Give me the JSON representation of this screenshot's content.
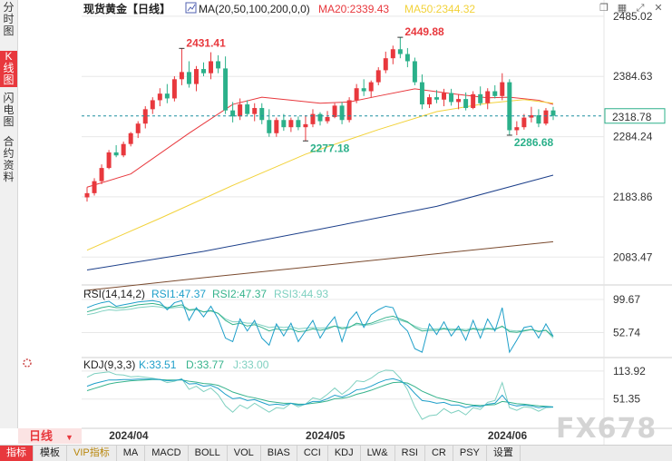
{
  "left_tabs": [
    {
      "label": "分时图",
      "active": false
    },
    {
      "label": "K线图",
      "active": true
    },
    {
      "label": "闪电图",
      "active": false
    },
    {
      "label": "合约资料",
      "active": false
    }
  ],
  "period_selector": {
    "label": "日线",
    "arrow": "▼"
  },
  "bottom_tabs": [
    "指标",
    "模板",
    "VIP指标",
    "MA",
    "MACD",
    "BOLL",
    "VOL",
    "BIAS",
    "CCI",
    "KDJ",
    "LW&",
    "RSI",
    "CR",
    "PSY",
    "设置"
  ],
  "watermark": "FX678",
  "top_icons": [
    "window-restore-icon",
    "grid-icon",
    "expand-icon",
    "close-icon"
  ],
  "colors": {
    "up": "#e8383d",
    "down": "#2bb08a",
    "ma20": "#e8383d",
    "ma50": "#f2d23a",
    "ma100": "#1c3f8a",
    "ma200": "#7a4a2e",
    "rsi1": "#1e9fc9",
    "rsi2": "#36b38c",
    "rsi3": "#7fd0c0",
    "k": "#1e9fc9",
    "d": "#36b38c",
    "j": "#7fd0c0",
    "grid": "#e8e8e8",
    "price_line": "#1e8fa0"
  },
  "chart_data": {
    "type": "candlestick",
    "title": "现货黄金【日线】",
    "ma_header": "MA(20,50,100,200,0,0)",
    "ma_labels": [
      {
        "name": "MA20",
        "label": "MA20:2339.43",
        "value": 2339.43,
        "color_key": "ma20"
      },
      {
        "name": "MA50",
        "label": "MA50:2344.32",
        "value": 2344.32,
        "color_key": "ma50"
      }
    ],
    "y_ticks": [
      2485.02,
      2384.63,
      2284.24,
      2183.86,
      2083.47
    ],
    "y_tick_labels": [
      "2485.02",
      "2384.63",
      "2284.24",
      "2183.86",
      "2083.47"
    ],
    "ylim": [
      2040,
      2500
    ],
    "x_labels": [
      "2024/04",
      "2024/05",
      "2024/06"
    ],
    "x_label_index": [
      6,
      33,
      58
    ],
    "current_price": 2318.78,
    "current_price_label": "2318.78",
    "annotations": [
      {
        "label": "2431.41",
        "value": 2431.41,
        "index": 13,
        "kind": "high"
      },
      {
        "label": "2449.88",
        "value": 2449.88,
        "index": 43,
        "kind": "high"
      },
      {
        "label": "2277.18",
        "value": 2277.18,
        "index": 30,
        "kind": "low"
      },
      {
        "label": "2286.68",
        "value": 2286.68,
        "index": 58,
        "kind": "low"
      }
    ],
    "ohlc": [
      [
        2183,
        2200,
        2176,
        2190
      ],
      [
        2190,
        2215,
        2186,
        2210
      ],
      [
        2210,
        2238,
        2205,
        2232
      ],
      [
        2232,
        2262,
        2230,
        2258
      ],
      [
        2258,
        2270,
        2250,
        2253
      ],
      [
        2253,
        2276,
        2250,
        2272
      ],
      [
        2272,
        2292,
        2268,
        2290
      ],
      [
        2290,
        2310,
        2282,
        2306
      ],
      [
        2306,
        2335,
        2298,
        2330
      ],
      [
        2330,
        2350,
        2322,
        2345
      ],
      [
        2345,
        2365,
        2335,
        2356
      ],
      [
        2356,
        2372,
        2340,
        2348
      ],
      [
        2348,
        2385,
        2343,
        2380
      ],
      [
        2380,
        2431.41,
        2370,
        2392
      ],
      [
        2392,
        2410,
        2366,
        2372
      ],
      [
        2372,
        2402,
        2360,
        2397
      ],
      [
        2397,
        2408,
        2385,
        2390
      ],
      [
        2390,
        2425,
        2380,
        2410
      ],
      [
        2410,
        2420,
        2390,
        2398
      ],
      [
        2398,
        2418,
        2322,
        2328
      ],
      [
        2328,
        2342,
        2308,
        2318
      ],
      [
        2318,
        2348,
        2312,
        2338
      ],
      [
        2338,
        2345,
        2318,
        2322
      ],
      [
        2322,
        2340,
        2310,
        2332
      ],
      [
        2332,
        2340,
        2305,
        2312
      ],
      [
        2312,
        2330,
        2284,
        2290
      ],
      [
        2290,
        2316,
        2284,
        2312
      ],
      [
        2312,
        2322,
        2294,
        2300
      ],
      [
        2300,
        2316,
        2292,
        2312
      ],
      [
        2312,
        2318,
        2295,
        2300
      ],
      [
        2300,
        2320,
        2277.18,
        2305
      ],
      [
        2305,
        2330,
        2300,
        2322
      ],
      [
        2322,
        2325,
        2303,
        2310
      ],
      [
        2310,
        2327,
        2306,
        2317
      ],
      [
        2317,
        2340,
        2315,
        2336
      ],
      [
        2336,
        2342,
        2305,
        2312
      ],
      [
        2312,
        2350,
        2308,
        2345
      ],
      [
        2345,
        2372,
        2340,
        2365
      ],
      [
        2365,
        2380,
        2352,
        2360
      ],
      [
        2360,
        2378,
        2350,
        2375
      ],
      [
        2375,
        2400,
        2370,
        2395
      ],
      [
        2395,
        2426,
        2390,
        2415
      ],
      [
        2415,
        2436,
        2405,
        2430
      ],
      [
        2430,
        2449.88,
        2415,
        2422
      ],
      [
        2422,
        2432,
        2400,
        2410
      ],
      [
        2410,
        2416,
        2370,
        2375
      ],
      [
        2375,
        2388,
        2330,
        2338
      ],
      [
        2338,
        2355,
        2332,
        2350
      ],
      [
        2350,
        2362,
        2340,
        2346
      ],
      [
        2346,
        2364,
        2335,
        2357
      ],
      [
        2357,
        2364,
        2336,
        2342
      ],
      [
        2342,
        2355,
        2330,
        2347
      ],
      [
        2347,
        2358,
        2328,
        2332
      ],
      [
        2332,
        2360,
        2330,
        2355
      ],
      [
        2355,
        2368,
        2336,
        2340
      ],
      [
        2340,
        2365,
        2330,
        2360
      ],
      [
        2360,
        2370,
        2348,
        2352
      ],
      [
        2352,
        2390,
        2345,
        2375
      ],
      [
        2375,
        2380,
        2286.68,
        2295
      ],
      [
        2295,
        2310,
        2286.68,
        2300
      ],
      [
        2300,
        2322,
        2296,
        2316
      ],
      [
        2316,
        2334,
        2308,
        2320
      ],
      [
        2320,
        2330,
        2300,
        2306
      ],
      [
        2306,
        2332,
        2303,
        2328
      ],
      [
        2328,
        2334,
        2312,
        2319
      ]
    ],
    "ma_series": [
      {
        "name": "MA20",
        "color_key": "ma20",
        "points": [
          [
            0,
            2200
          ],
          [
            6,
            2222
          ],
          [
            14,
            2290
          ],
          [
            20,
            2338
          ],
          [
            24,
            2350
          ],
          [
            28,
            2345
          ],
          [
            32,
            2340
          ],
          [
            36,
            2342
          ],
          [
            40,
            2352
          ],
          [
            45,
            2364
          ],
          [
            50,
            2356
          ],
          [
            55,
            2349
          ],
          [
            58,
            2350
          ],
          [
            62,
            2345
          ],
          [
            64,
            2338
          ]
        ]
      },
      {
        "name": "MA50",
        "color_key": "ma50",
        "points": [
          [
            0,
            2095
          ],
          [
            10,
            2148
          ],
          [
            20,
            2203
          ],
          [
            30,
            2255
          ],
          [
            40,
            2296
          ],
          [
            48,
            2326
          ],
          [
            55,
            2340
          ],
          [
            60,
            2346
          ],
          [
            64,
            2340
          ]
        ]
      },
      {
        "name": "MA100",
        "color_key": "ma100",
        "points": [
          [
            0,
            2062
          ],
          [
            16,
            2093
          ],
          [
            32,
            2130
          ],
          [
            48,
            2168
          ],
          [
            64,
            2220
          ]
        ]
      },
      {
        "name": "MA200",
        "color_key": "ma200",
        "points": [
          [
            0,
            2028
          ],
          [
            16,
            2049
          ],
          [
            32,
            2069
          ],
          [
            48,
            2089
          ],
          [
            64,
            2109
          ]
        ]
      }
    ],
    "rsi": {
      "header": "RSI(14,14,2)",
      "labels": [
        {
          "label": "RSI1:47.37",
          "value": 47.37,
          "color_key": "rsi1"
        },
        {
          "label": "RSI2:47.37",
          "value": 47.37,
          "color_key": "rsi2"
        },
        {
          "label": "RSI3:44.93",
          "value": 44.93,
          "color_key": "rsi3"
        }
      ],
      "y_ticks": [
        99.67,
        52.74
      ],
      "y_tick_labels": [
        "99.67",
        "52.74"
      ],
      "ylim": [
        20,
        115
      ],
      "rsi1": [
        88,
        92,
        95,
        97,
        90,
        92,
        94,
        96,
        97,
        98,
        96,
        85,
        95,
        98,
        70,
        88,
        75,
        90,
        72,
        45,
        40,
        72,
        55,
        70,
        45,
        35,
        65,
        48,
        66,
        40,
        55,
        70,
        45,
        62,
        75,
        40,
        70,
        82,
        60,
        78,
        85,
        90,
        88,
        65,
        55,
        30,
        25,
        65,
        50,
        68,
        48,
        62,
        42,
        70,
        45,
        72,
        55,
        88,
        25,
        42,
        60,
        62,
        45,
        65,
        47.37
      ],
      "rsi2": [
        82,
        85,
        88,
        90,
        88,
        88,
        90,
        92,
        93,
        94,
        92,
        88,
        90,
        92,
        85,
        86,
        82,
        84,
        80,
        70,
        64,
        66,
        62,
        64,
        60,
        55,
        58,
        56,
        58,
        54,
        55,
        58,
        56,
        58,
        62,
        58,
        60,
        66,
        64,
        66,
        70,
        74,
        76,
        72,
        68,
        60,
        55,
        56,
        56,
        58,
        56,
        57,
        55,
        58,
        56,
        58,
        57,
        62,
        54,
        53,
        55,
        57,
        54,
        56,
        47.37
      ],
      "rsi3": [
        78,
        80,
        83,
        85,
        84,
        85,
        86,
        88,
        89,
        90,
        89,
        87,
        88,
        89,
        84,
        85,
        82,
        83,
        80,
        72,
        68,
        68,
        66,
        66,
        63,
        60,
        61,
        60,
        61,
        58,
        59,
        60,
        59,
        60,
        62,
        60,
        61,
        64,
        63,
        64,
        67,
        70,
        72,
        70,
        67,
        62,
        58,
        58,
        58,
        59,
        58,
        58,
        57,
        59,
        58,
        59,
        58,
        61,
        56,
        55,
        56,
        57,
        55,
        56,
        44.93
      ]
    },
    "kdj": {
      "header": "KDJ(9,3,3)",
      "labels": [
        {
          "label": "K:33.51",
          "value": 33.51,
          "color_key": "k"
        },
        {
          "label": "D:33.77",
          "value": 33.77,
          "color_key": "d"
        },
        {
          "label": "J:33.00",
          "value": 33.0,
          "color_key": "j"
        }
      ],
      "y_ticks": [
        113.92,
        51.35
      ],
      "y_tick_labels": [
        "113.92",
        "51.35"
      ],
      "ylim": [
        -10,
        140
      ],
      "k": [
        80,
        86,
        90,
        94,
        94,
        95,
        95,
        96,
        96,
        96,
        95,
        92,
        93,
        95,
        85,
        86,
        80,
        82,
        75,
        62,
        52,
        54,
        48,
        50,
        44,
        38,
        40,
        38,
        42,
        38,
        40,
        46,
        46,
        52,
        60,
        56,
        62,
        72,
        74,
        80,
        88,
        94,
        97,
        92,
        82,
        64,
        48,
        46,
        42,
        44,
        38,
        38,
        32,
        36,
        34,
        40,
        42,
        60,
        40,
        36,
        38,
        36,
        32,
        34,
        33.51
      ],
      "d": [
        70,
        75,
        80,
        85,
        88,
        90,
        92,
        93,
        94,
        95,
        95,
        94,
        94,
        94,
        91,
        89,
        86,
        85,
        82,
        75,
        67,
        62,
        57,
        54,
        50,
        46,
        44,
        42,
        42,
        40,
        40,
        42,
        44,
        47,
        52,
        53,
        56,
        62,
        66,
        71,
        77,
        83,
        88,
        89,
        87,
        79,
        69,
        62,
        55,
        51,
        47,
        44,
        40,
        38,
        37,
        38,
        39,
        46,
        44,
        41,
        40,
        38,
        36,
        35,
        33.77
      ],
      "j": [
        100,
        108,
        110,
        112,
        106,
        105,
        101,
        102,
        100,
        98,
        95,
        88,
        91,
        97,
        73,
        80,
        68,
        76,
        61,
        36,
        22,
        38,
        30,
        42,
        32,
        22,
        32,
        30,
        42,
        34,
        40,
        54,
        50,
        62,
        76,
        62,
        74,
        92,
        90,
        98,
        110,
        116,
        115,
        98,
        72,
        34,
        6,
        14,
        16,
        30,
        20,
        26,
        16,
        32,
        28,
        44,
        48,
        88,
        32,
        26,
        34,
        32,
        24,
        32,
        33.0
      ]
    }
  }
}
